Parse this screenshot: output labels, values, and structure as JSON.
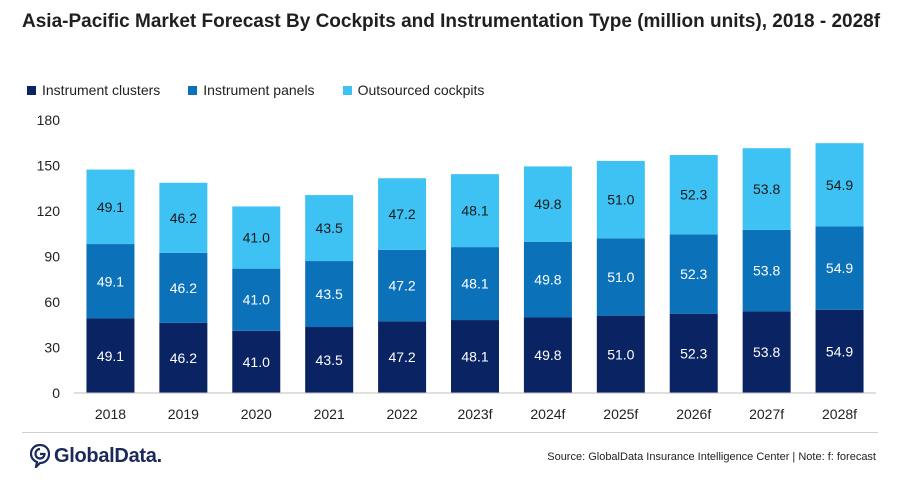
{
  "chart_data": {
    "type": "bar",
    "stacked": true,
    "title": "Asia-Pacific Market Forecast By Cockpits and Instrumentation Type (million units), 2018 - 2028f",
    "categories": [
      "2018",
      "2019",
      "2020",
      "2021",
      "2022",
      "2023f",
      "2024f",
      "2025f",
      "2026f",
      "2027f",
      "2028f"
    ],
    "series": [
      {
        "name": "Instrument clusters",
        "color": "#0a2463",
        "label_color": "#ffffff",
        "values": [
          49.1,
          46.2,
          41.0,
          43.5,
          47.2,
          48.1,
          49.8,
          51.0,
          52.3,
          53.8,
          54.9
        ]
      },
      {
        "name": "Instrument panels",
        "color": "#0b72b9",
        "label_color": "#ffffff",
        "values": [
          49.1,
          46.2,
          41.0,
          43.5,
          47.2,
          48.1,
          49.8,
          51.0,
          52.3,
          53.8,
          54.9
        ]
      },
      {
        "name": "Outsourced cockpits",
        "color": "#3ec1f3",
        "label_color": "#1a1a1a",
        "values": [
          49.1,
          46.2,
          41.0,
          43.5,
          47.2,
          48.1,
          49.8,
          51.0,
          52.3,
          53.8,
          54.9
        ]
      }
    ],
    "ylim": [
      0,
      180
    ],
    "yticks": [
      0,
      30,
      60,
      90,
      120,
      150,
      180
    ],
    "xlabel": "",
    "ylabel": "",
    "grid": false,
    "legend_position": "top-left"
  },
  "footer": {
    "logo_text": "GlobalData.",
    "source": "Source: GlobalData Insurance Intelligence Center | Note: f: forecast"
  },
  "colors": {
    "logo": "#1a2a5a"
  }
}
